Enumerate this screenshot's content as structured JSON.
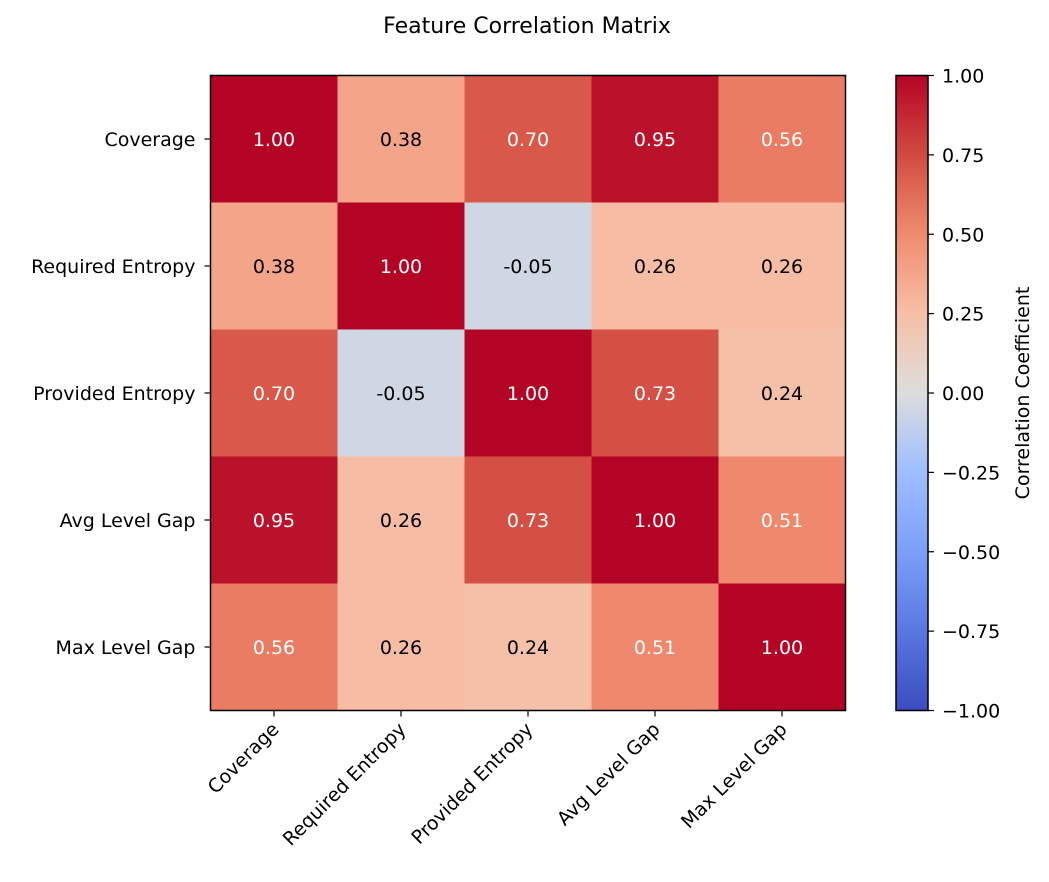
{
  "chart_data": {
    "type": "heatmap",
    "title": "Feature Correlation Matrix",
    "xlabel": "",
    "ylabel": "",
    "x_categories": [
      "Coverage",
      "Required Entropy",
      "Provided Entropy",
      "Avg Level Gap",
      "Max Level Gap"
    ],
    "y_categories": [
      "Coverage",
      "Required Entropy",
      "Provided Entropy",
      "Avg Level Gap",
      "Max Level Gap"
    ],
    "values": [
      [
        1.0,
        0.38,
        0.7,
        0.95,
        0.56
      ],
      [
        0.38,
        1.0,
        -0.05,
        0.26,
        0.26
      ],
      [
        0.7,
        -0.05,
        1.0,
        0.73,
        0.24
      ],
      [
        0.95,
        0.26,
        0.73,
        1.0,
        0.51
      ],
      [
        0.56,
        0.26,
        0.24,
        0.51,
        1.0
      ]
    ],
    "value_format": "2 decimals",
    "colormap": "coolwarm",
    "vmin": -1.0,
    "vmax": 1.0,
    "colorbar": {
      "label": "Correlation Coefficient",
      "ticks": [
        1.0,
        0.75,
        0.5,
        0.25,
        0.0,
        -0.25,
        -0.5,
        -0.75,
        -1.0
      ],
      "tick_labels": [
        "1.00",
        "0.75",
        "0.50",
        "0.25",
        "0.00",
        "−0.25",
        "−0.50",
        "−0.75",
        "−1.00"
      ]
    },
    "grid": false,
    "x_tick_rotation": "45 degrees"
  }
}
